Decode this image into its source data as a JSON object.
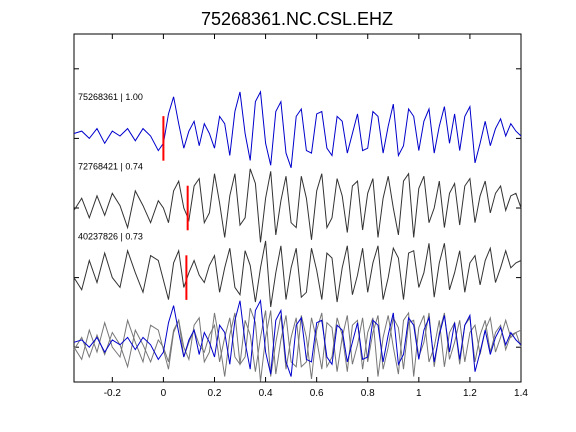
{
  "chart_data": {
    "type": "line",
    "title": "75268361.NC.CSL.EHZ",
    "xlabel": "",
    "ylabel": "",
    "xlim": [
      -0.35,
      1.4
    ],
    "ylim": [
      -0.5,
      4.5
    ],
    "x_ticks": [
      -0.2,
      0,
      0.2,
      0.4,
      0.6,
      0.8,
      1,
      1.2,
      1.4
    ],
    "x_tick_labels": [
      "-0.2",
      "0",
      "0.2",
      "0.4",
      "0.6",
      "0.8",
      "1",
      "1.2",
      "1.4"
    ],
    "y_ticks": [
      0,
      1,
      2,
      3,
      4
    ],
    "grid": false,
    "legend": "none",
    "trace_labels": [
      "75268361 | 1.00",
      "72768421 | 0.74",
      "40237826 | 0.73"
    ],
    "pick_times": [
      0.0,
      0.095,
      0.09
    ],
    "colors": {
      "primary": "#0000cc",
      "secondary": "#333333",
      "pick": "#ff0000",
      "overlay": "#777777"
    },
    "series": [
      {
        "color": "#0000cc",
        "baseline": 3,
        "x": [
          -0.35,
          -0.32,
          -0.29,
          -0.26,
          -0.23,
          -0.2,
          -0.17,
          -0.14,
          -0.11,
          -0.08,
          -0.05,
          -0.02,
          0.0,
          0.02,
          0.04,
          0.06,
          0.08,
          0.1,
          0.12,
          0.14,
          0.16,
          0.18,
          0.2,
          0.22,
          0.24,
          0.26,
          0.28,
          0.3,
          0.32,
          0.34,
          0.36,
          0.38,
          0.4,
          0.42,
          0.44,
          0.46,
          0.48,
          0.5,
          0.52,
          0.54,
          0.56,
          0.58,
          0.6,
          0.62,
          0.64,
          0.66,
          0.68,
          0.7,
          0.72,
          0.74,
          0.76,
          0.78,
          0.8,
          0.82,
          0.84,
          0.86,
          0.88,
          0.9,
          0.92,
          0.94,
          0.96,
          0.98,
          1.0,
          1.02,
          1.04,
          1.06,
          1.08,
          1.1,
          1.12,
          1.14,
          1.16,
          1.18,
          1.2,
          1.22,
          1.24,
          1.26,
          1.28,
          1.3,
          1.32,
          1.34,
          1.36,
          1.38,
          1.4
        ],
        "y": [
          0.1,
          0.15,
          0.0,
          0.2,
          -0.1,
          0.15,
          0.05,
          0.2,
          -0.05,
          0.2,
          0.05,
          -0.25,
          -0.1,
          0.5,
          0.85,
          0.3,
          -0.2,
          0.15,
          0.35,
          -0.15,
          0.3,
          0.1,
          -0.2,
          0.45,
          0.3,
          -0.35,
          0.55,
          0.95,
          0.1,
          -0.45,
          0.75,
          0.95,
          -0.1,
          -0.55,
          0.55,
          0.75,
          -0.3,
          -0.6,
          0.45,
          0.6,
          -0.25,
          -0.3,
          0.5,
          0.55,
          -0.2,
          -0.35,
          0.45,
          0.35,
          -0.3,
          0.1,
          0.5,
          -0.25,
          -0.2,
          0.55,
          0.45,
          -0.3,
          0.25,
          0.7,
          -0.35,
          -0.15,
          0.6,
          0.45,
          -0.25,
          0.35,
          0.6,
          -0.3,
          0.25,
          0.65,
          -0.1,
          0.5,
          -0.25,
          0.45,
          0.65,
          -0.5,
          -0.1,
          0.35,
          -0.15,
          0.2,
          0.4,
          0.05,
          0.3,
          0.15,
          0.05
        ]
      },
      {
        "color": "#333333",
        "baseline": 2,
        "x": [
          -0.35,
          -0.32,
          -0.29,
          -0.26,
          -0.23,
          -0.2,
          -0.17,
          -0.14,
          -0.11,
          -0.08,
          -0.05,
          -0.02,
          0.0,
          0.02,
          0.04,
          0.06,
          0.08,
          0.1,
          0.12,
          0.14,
          0.16,
          0.18,
          0.2,
          0.22,
          0.24,
          0.26,
          0.28,
          0.3,
          0.32,
          0.34,
          0.36,
          0.38,
          0.4,
          0.42,
          0.44,
          0.46,
          0.48,
          0.5,
          0.52,
          0.54,
          0.56,
          0.58,
          0.6,
          0.62,
          0.64,
          0.66,
          0.68,
          0.7,
          0.72,
          0.74,
          0.76,
          0.78,
          0.8,
          0.82,
          0.84,
          0.86,
          0.88,
          0.9,
          0.92,
          0.94,
          0.96,
          0.98,
          1.0,
          1.02,
          1.04,
          1.06,
          1.08,
          1.1,
          1.12,
          1.14,
          1.16,
          1.18,
          1.2,
          1.22,
          1.24,
          1.26,
          1.28,
          1.3,
          1.32,
          1.34,
          1.36,
          1.38,
          1.4
        ],
        "y": [
          -0.05,
          0.2,
          -0.2,
          0.25,
          -0.15,
          0.3,
          0.05,
          -0.4,
          0.35,
          0.05,
          -0.3,
          0.15,
          0.0,
          -0.3,
          0.35,
          0.55,
          0.0,
          -0.25,
          0.45,
          0.6,
          -0.3,
          -0.1,
          0.7,
          0.1,
          -0.6,
          0.25,
          0.7,
          -0.35,
          -0.2,
          0.8,
          0.5,
          -0.7,
          0.2,
          0.75,
          -0.55,
          0.15,
          0.65,
          -0.3,
          -0.4,
          0.65,
          0.2,
          -0.65,
          0.35,
          0.7,
          -0.4,
          -0.2,
          0.6,
          0.25,
          -0.5,
          0.45,
          0.55,
          -0.45,
          0.3,
          0.6,
          -0.6,
          0.2,
          0.65,
          0.0,
          -0.55,
          0.55,
          0.7,
          -0.6,
          0.4,
          0.65,
          -0.3,
          0.0,
          0.55,
          -0.4,
          0.3,
          0.5,
          -0.35,
          0.45,
          0.6,
          -0.3,
          0.25,
          0.55,
          -0.1,
          0.3,
          0.45,
          -0.05,
          0.25,
          0.3,
          0.0
        ]
      },
      {
        "color": "#333333",
        "baseline": 1,
        "x": [
          -0.35,
          -0.32,
          -0.29,
          -0.26,
          -0.23,
          -0.2,
          -0.17,
          -0.14,
          -0.11,
          -0.08,
          -0.05,
          -0.02,
          0.0,
          0.02,
          0.04,
          0.06,
          0.08,
          0.1,
          0.12,
          0.14,
          0.16,
          0.18,
          0.2,
          0.22,
          0.24,
          0.26,
          0.28,
          0.3,
          0.32,
          0.34,
          0.36,
          0.38,
          0.4,
          0.42,
          0.44,
          0.46,
          0.48,
          0.5,
          0.52,
          0.54,
          0.56,
          0.58,
          0.6,
          0.62,
          0.64,
          0.66,
          0.68,
          0.7,
          0.72,
          0.74,
          0.76,
          0.78,
          0.8,
          0.82,
          0.84,
          0.86,
          0.88,
          0.9,
          0.92,
          0.94,
          0.96,
          0.98,
          1.0,
          1.02,
          1.04,
          1.06,
          1.08,
          1.1,
          1.12,
          1.14,
          1.16,
          1.18,
          1.2,
          1.22,
          1.24,
          1.26,
          1.28,
          1.3,
          1.32,
          1.34,
          1.36,
          1.38,
          1.4
        ],
        "y": [
          0.0,
          -0.25,
          0.35,
          -0.1,
          0.5,
          0.0,
          -0.2,
          0.55,
          0.1,
          -0.3,
          0.45,
          0.35,
          -0.05,
          -0.45,
          0.3,
          0.55,
          -0.2,
          0.1,
          0.35,
          0.05,
          -0.1,
          0.25,
          0.45,
          -0.3,
          0.2,
          0.6,
          -0.2,
          -0.35,
          0.55,
          0.25,
          -0.5,
          0.2,
          0.75,
          -0.6,
          0.1,
          0.65,
          -0.45,
          0.2,
          0.6,
          -0.4,
          -0.3,
          0.6,
          0.15,
          -0.45,
          0.5,
          0.4,
          -0.5,
          0.2,
          0.65,
          -0.35,
          0.05,
          0.6,
          -0.3,
          0.3,
          0.65,
          -0.45,
          0.0,
          0.6,
          0.4,
          -0.45,
          0.5,
          0.55,
          -0.2,
          0.1,
          0.7,
          -0.4,
          0.3,
          0.7,
          -0.25,
          0.1,
          0.55,
          -0.3,
          0.3,
          0.45,
          -0.15,
          0.35,
          0.6,
          -0.1,
          0.2,
          0.55,
          0.2,
          0.3,
          0.35
        ]
      }
    ],
    "overlay": {
      "baseline": 0,
      "series_index": [
        0,
        1,
        2
      ]
    }
  }
}
